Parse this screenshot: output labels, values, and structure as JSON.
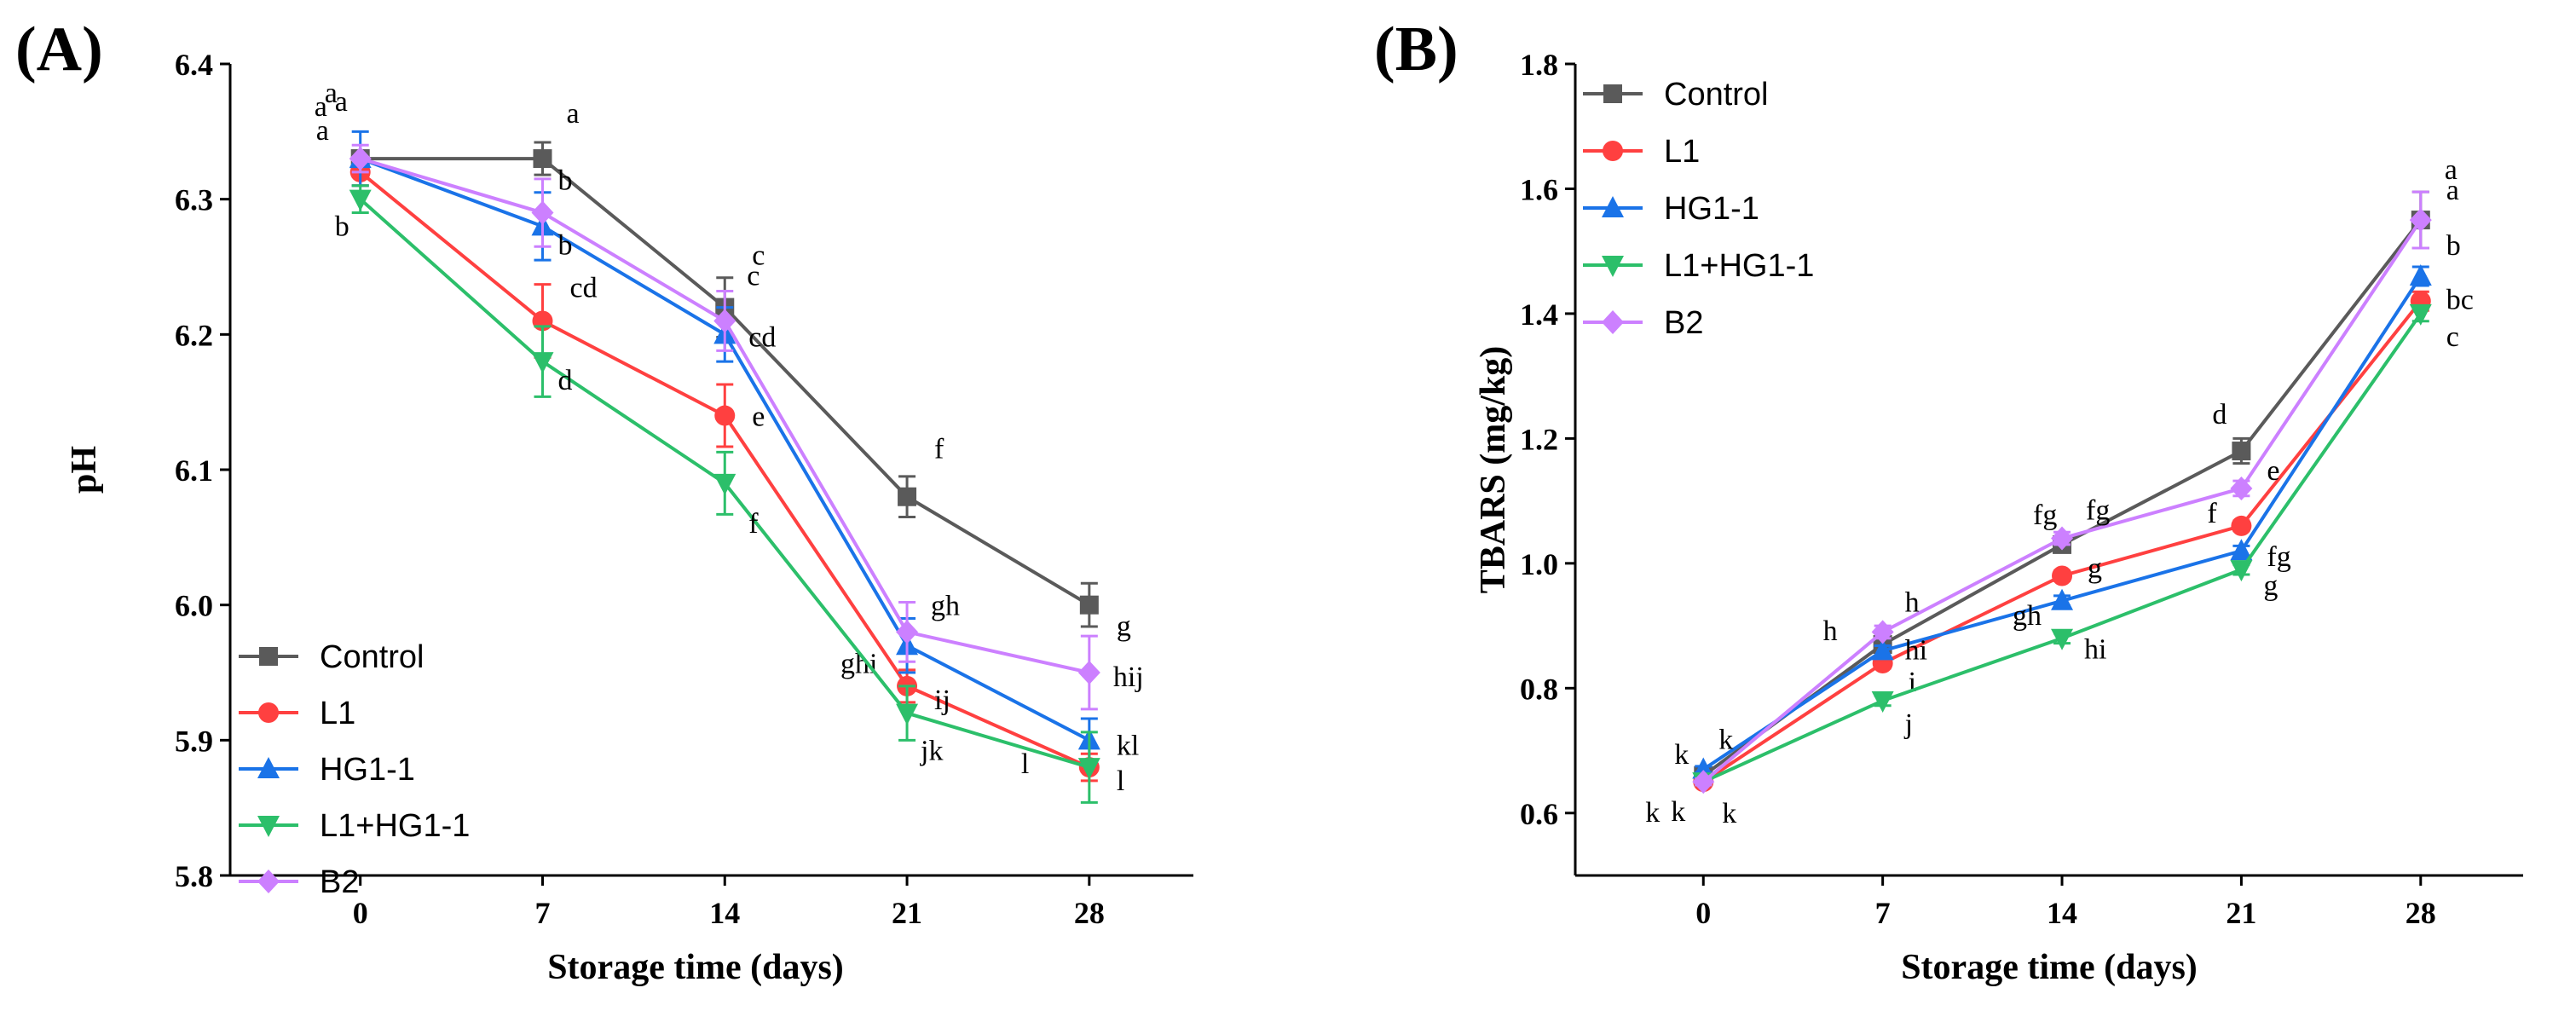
{
  "colors": {
    "Control": "#5a5a5a",
    "L1": "#ff4040",
    "HG1-1": "#1a73e8",
    "L1+HG1-1": "#2cbf6a",
    "B2": "#cc80ff"
  },
  "chart_data": [
    {
      "type": "line",
      "panel_label": "(A)",
      "title": "",
      "xlabel": "Storage time (days)",
      "ylabel": "pH",
      "x": [
        0,
        7,
        14,
        21,
        28
      ],
      "xlim": [
        -5,
        32
      ],
      "ylim": [
        5.8,
        6.4
      ],
      "yticks": [
        5.8,
        5.9,
        6.0,
        6.1,
        6.2,
        6.3,
        6.4
      ],
      "ytick_labels": [
        "5.8",
        "5.9",
        "6.0",
        "6.1",
        "6.2",
        "6.3",
        "6.4"
      ],
      "xtick_labels": [
        "0",
        "7",
        "14",
        "21",
        "28"
      ],
      "legend_position": "bottom-left",
      "series": [
        {
          "name": "Control",
          "marker": "square",
          "values": [
            6.33,
            6.33,
            6.22,
            6.08,
            6.0
          ],
          "errors": [
            0.005,
            0.012,
            0.022,
            0.015,
            0.016
          ],
          "letters": [
            "a",
            "a",
            "c",
            "f",
            "g"
          ]
        },
        {
          "name": "L1",
          "marker": "circle",
          "values": [
            6.32,
            6.21,
            6.14,
            5.94,
            5.88
          ],
          "errors": [
            0.01,
            0.027,
            0.023,
            0.012,
            0.01
          ],
          "letters": [
            "a",
            "cd",
            "e",
            "ij",
            "l"
          ]
        },
        {
          "name": "HG1-1",
          "marker": "triangle-up",
          "values": [
            6.33,
            6.28,
            6.2,
            5.97,
            5.9
          ],
          "errors": [
            0.02,
            0.025,
            0.02,
            0.02,
            0.016
          ],
          "letters": [
            "a",
            "b",
            "cd",
            "ghi",
            "kl"
          ]
        },
        {
          "name": "L1+HG1-1",
          "marker": "triangle-down",
          "values": [
            6.3,
            6.18,
            6.09,
            5.92,
            5.88
          ],
          "errors": [
            0.01,
            0.026,
            0.023,
            0.02,
            0.026
          ],
          "letters": [
            "b",
            "d",
            "f",
            "jk",
            "l"
          ]
        },
        {
          "name": "B2",
          "marker": "diamond",
          "values": [
            6.33,
            6.29,
            6.21,
            5.98,
            5.95
          ],
          "errors": [
            0.01,
            0.025,
            0.022,
            0.022,
            0.027
          ],
          "letters": [
            "a",
            "b",
            "c",
            "gh",
            "hij"
          ]
        }
      ]
    },
    {
      "type": "line",
      "panel_label": "(B)",
      "title": "",
      "xlabel": "Storage time (days)",
      "ylabel": "TBARS (mg/kg)",
      "x": [
        0,
        7,
        14,
        21,
        28
      ],
      "xlim": [
        -5,
        32
      ],
      "ylim": [
        0.5,
        1.8
      ],
      "yticks": [
        0.6,
        0.8,
        1.0,
        1.2,
        1.4,
        1.6,
        1.8
      ],
      "ytick_labels": [
        "0.6",
        "0.8",
        "1.0",
        "1.2",
        "1.4",
        "1.6",
        "1.8"
      ],
      "xtick_labels": [
        "0",
        "7",
        "14",
        "21",
        "28"
      ],
      "legend_position": "top-left",
      "series": [
        {
          "name": "Control",
          "marker": "square",
          "values": [
            0.66,
            0.87,
            1.03,
            1.18,
            1.55
          ],
          "errors": [
            0.005,
            0.01,
            0.012,
            0.02,
            0.045
          ],
          "letters": [
            "k",
            "h",
            "fg",
            "d",
            "a"
          ]
        },
        {
          "name": "L1",
          "marker": "circle",
          "values": [
            0.65,
            0.84,
            0.98,
            1.06,
            1.42
          ],
          "errors": [
            0.005,
            0.008,
            0.008,
            0.008,
            0.015
          ],
          "letters": [
            "k",
            "i",
            "g",
            "f",
            "bc"
          ]
        },
        {
          "name": "HG1-1",
          "marker": "triangle-up",
          "values": [
            0.67,
            0.86,
            0.94,
            1.02,
            1.46
          ],
          "errors": [
            0.005,
            0.008,
            0.008,
            0.008,
            0.015
          ],
          "letters": [
            "k",
            "hi",
            "gh",
            "fg",
            "b"
          ]
        },
        {
          "name": "L1+HG1-1",
          "marker": "triangle-down",
          "values": [
            0.65,
            0.78,
            0.88,
            0.99,
            1.4
          ],
          "errors": [
            0.005,
            0.008,
            0.008,
            0.008,
            0.012
          ],
          "letters": [
            "k",
            "j",
            "hi",
            "g",
            "c"
          ]
        },
        {
          "name": "B2",
          "marker": "diamond",
          "values": [
            0.65,
            0.89,
            1.04,
            1.12,
            1.55
          ],
          "errors": [
            0.005,
            0.01,
            0.01,
            0.012,
            0.045
          ],
          "letters": [
            "k",
            "h",
            "fg",
            "e",
            "a"
          ]
        }
      ]
    }
  ]
}
